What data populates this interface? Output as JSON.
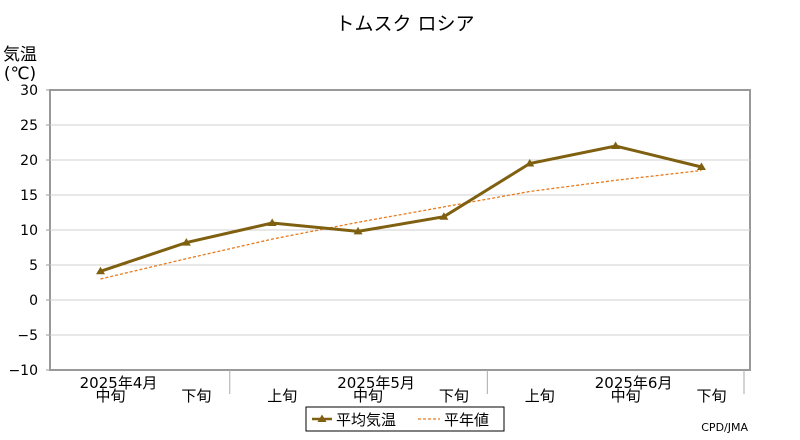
{
  "chart_data": {
    "type": "line",
    "title": "トムスク ロシア",
    "ylabel_line1": "気温",
    "ylabel_line2": "(℃)",
    "ylim": [
      -10,
      30
    ],
    "yticks": [
      30,
      25,
      20,
      15,
      10,
      5,
      0,
      -5,
      -10
    ],
    "ytick_labels": [
      "30",
      "25",
      "20",
      "15",
      "10",
      "5",
      "0",
      "−5",
      "−10"
    ],
    "grid": true,
    "categories": [
      "中旬",
      "下旬",
      "上旬",
      "中旬",
      "下旬",
      "上旬",
      "中旬",
      "下旬"
    ],
    "month_labels": [
      {
        "label": "2025年4月",
        "index": 0
      },
      {
        "label": "2025年5月",
        "index": 3
      },
      {
        "label": "2025年6月",
        "index": 6
      }
    ],
    "series": [
      {
        "name": "平均気温",
        "values": [
          4.1,
          8.2,
          11.0,
          9.8,
          11.9,
          19.5,
          22.0,
          19.0
        ],
        "color": "#7f6010",
        "style": "solid-triangle"
      },
      {
        "name": "平年値",
        "values": [
          3.0,
          5.9,
          8.7,
          11.1,
          13.3,
          15.5,
          17.1,
          18.5
        ],
        "color": "#e87b1e",
        "style": "dashed"
      }
    ],
    "legend_position": "bottom-center",
    "credit": "CPD/JMA"
  }
}
